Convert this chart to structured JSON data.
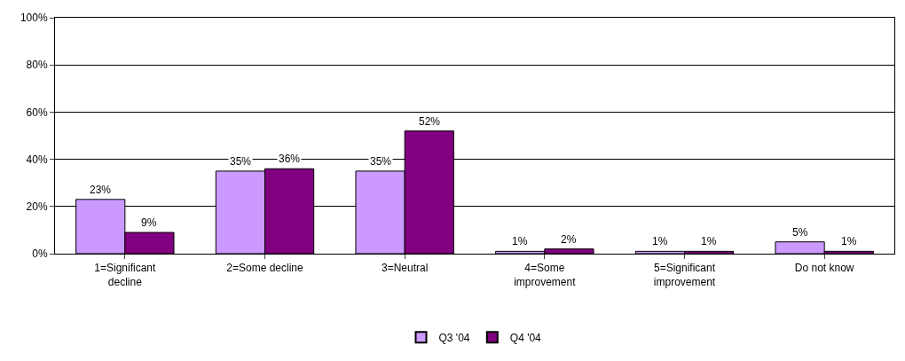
{
  "chart_data": {
    "type": "bar",
    "categories": [
      "1=Significant decline",
      "2=Some decline",
      "3=Neutral",
      "4=Some improvement",
      "5=Significant improvement",
      "Do not know"
    ],
    "series": [
      {
        "name": "Q3 '04",
        "color": "#cc99ff",
        "values": [
          23,
          35,
          35,
          1,
          1,
          5
        ],
        "value_labels": [
          "23%",
          "35%",
          "35%",
          "1%",
          "1%",
          "5%"
        ]
      },
      {
        "name": "Q4 '04",
        "color": "#800080",
        "values": [
          9,
          36,
          52,
          2,
          1,
          1
        ],
        "value_labels": [
          "9%",
          "36%",
          "52%",
          "2%",
          "1%",
          "1%"
        ]
      }
    ],
    "ylim": [
      0,
      100
    ],
    "yticks": [
      {
        "value": 0,
        "label": "0%"
      },
      {
        "value": 20,
        "label": "20%"
      },
      {
        "value": 40,
        "label": "40%"
      },
      {
        "value": 60,
        "label": "60%"
      },
      {
        "value": 80,
        "label": "80%"
      },
      {
        "value": 100,
        "label": "100%"
      }
    ],
    "grid": "y",
    "legend": "bottom"
  }
}
